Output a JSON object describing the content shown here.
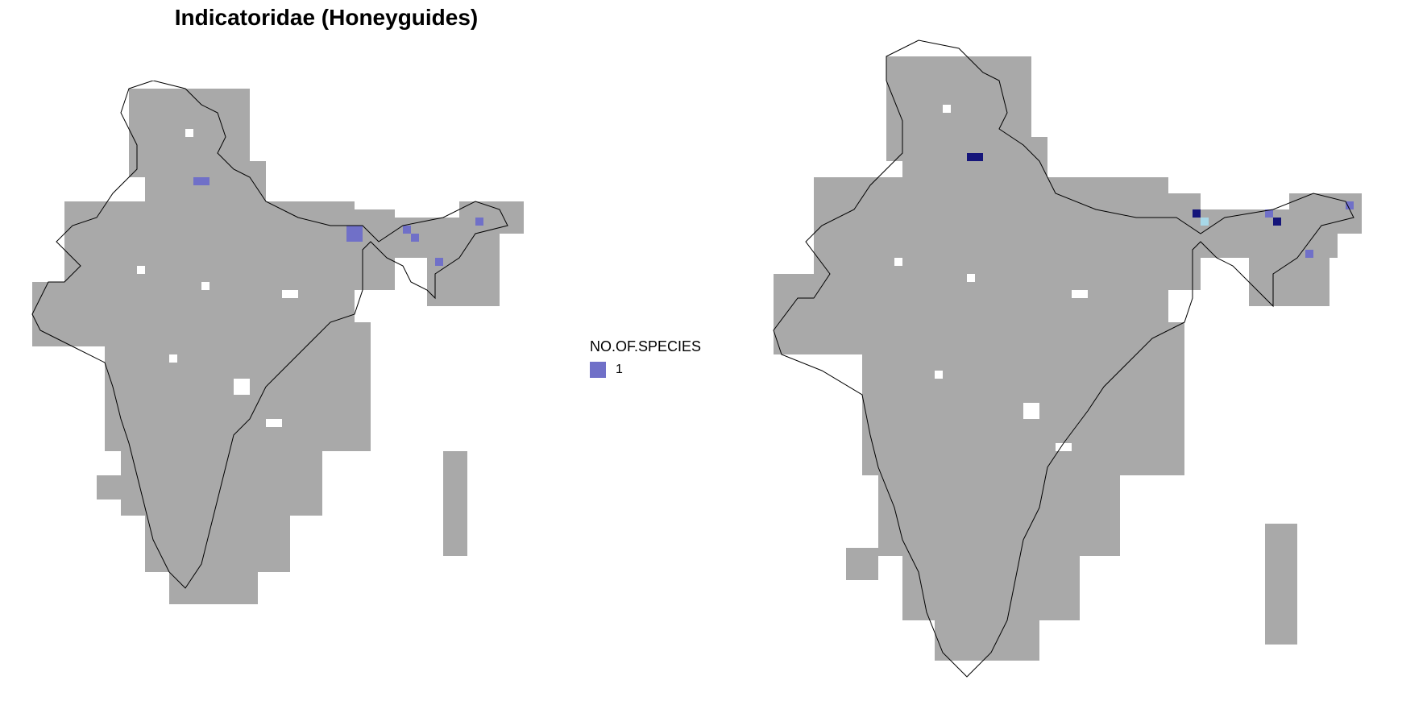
{
  "title": "Indicatoridae (Honeyguides)",
  "legend": {
    "title": "NO.OF.SPECIES",
    "items": [
      {
        "label": "1",
        "color": "#7070c8"
      }
    ]
  },
  "colors": {
    "grid_cell": "#a9a9a9",
    "outline": "#000000",
    "species_low": "#7070c8",
    "species_high": "#15157a",
    "species_light": "#a8d8e8"
  }
}
